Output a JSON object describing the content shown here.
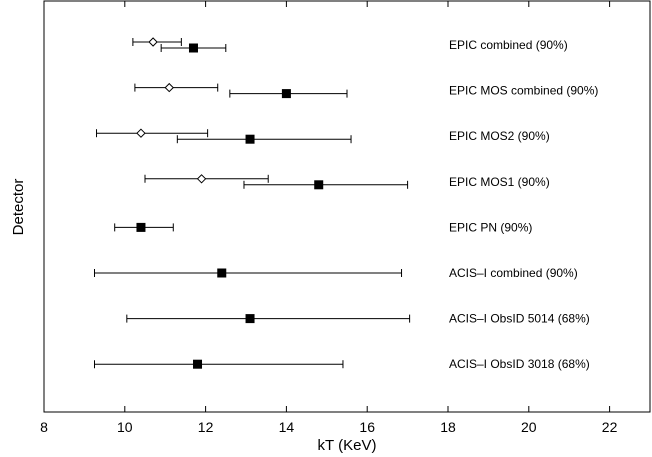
{
  "chart_data": {
    "type": "scatter",
    "xlabel": "kT (KeV)",
    "ylabel": "Detector",
    "xlim": [
      8,
      23
    ],
    "xticks": [
      8,
      10,
      12,
      14,
      16,
      18,
      20,
      22
    ],
    "grid": false,
    "legend": "none",
    "rows": [
      {
        "label": "EPIC combined (90%)",
        "filled": {
          "value": 11.7,
          "lo": 10.9,
          "hi": 12.5
        },
        "open": {
          "value": 10.7,
          "lo": 10.2,
          "hi": 11.4
        }
      },
      {
        "label": "EPIC MOS combined (90%)",
        "filled": {
          "value": 14.0,
          "lo": 12.6,
          "hi": 15.5
        },
        "open": {
          "value": 11.1,
          "lo": 10.25,
          "hi": 12.3
        }
      },
      {
        "label": "EPIC MOS2 (90%)",
        "filled": {
          "value": 13.1,
          "lo": 11.3,
          "hi": 15.6
        },
        "open": {
          "value": 10.4,
          "lo": 9.3,
          "hi": 12.05
        }
      },
      {
        "label": "EPIC MOS1 (90%)",
        "filled": {
          "value": 14.8,
          "lo": 12.95,
          "hi": 17.0
        },
        "open": {
          "value": 11.9,
          "lo": 10.5,
          "hi": 13.55
        }
      },
      {
        "label": "EPIC PN (90%)",
        "filled": {
          "value": 10.4,
          "lo": 9.75,
          "hi": 11.2
        }
      },
      {
        "label": "ACIS–I combined (90%)",
        "filled": {
          "value": 12.4,
          "lo": 9.25,
          "hi": 16.85
        }
      },
      {
        "label": "ACIS–I ObsID 5014 (68%)",
        "filled": {
          "value": 13.1,
          "lo": 10.05,
          "hi": 17.05
        }
      },
      {
        "label": "ACIS–I ObsID 3018 (68%)",
        "filled": {
          "value": 11.8,
          "lo": 9.25,
          "hi": 15.4
        }
      }
    ],
    "colors": {
      "marker": "#000000",
      "axis": "#000000"
    }
  }
}
